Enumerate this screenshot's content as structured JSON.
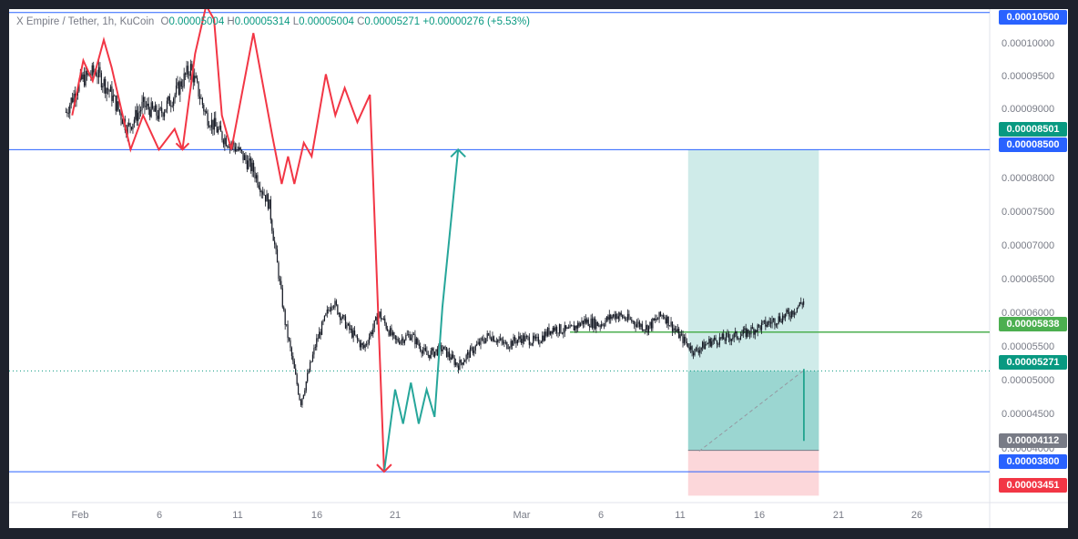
{
  "legend": {
    "symbol": "X Empire / Tether, 1h, KuCoin",
    "open_label": "O",
    "open": "0.00005004",
    "high_label": "H",
    "high": "0.00005314",
    "low_label": "L",
    "low": "0.00005004",
    "close_label": "C",
    "close": "0.00005271",
    "change": "+0.00000276 (+5.53%)"
  },
  "price_axis": {
    "ticks": [
      "0.00010000",
      "0.00009500",
      "0.00009000",
      "0.00008000",
      "0.00007500",
      "0.00007000",
      "0.00006500",
      "0.00006000",
      "0.00005500",
      "0.00005000",
      "0.00004500",
      "0.00004000"
    ],
    "badges": [
      {
        "label": "0.00010500",
        "color": "#2962ff"
      },
      {
        "label": "0.00008501",
        "color": "#089981"
      },
      {
        "label": "0.00008500",
        "color": "#2962ff"
      },
      {
        "label": "0.00005838",
        "color": "#4caf50"
      },
      {
        "label": "0.00005271",
        "color": "#089981"
      },
      {
        "label": "0.00004112",
        "color": "#787b86"
      },
      {
        "label": "0.00003800",
        "color": "#2962ff"
      },
      {
        "label": "0.00003451",
        "color": "#f23645"
      }
    ]
  },
  "time_axis": {
    "ticks": [
      "Feb",
      "6",
      "11",
      "16",
      "21",
      "Mar",
      "6",
      "11",
      "16",
      "21",
      "26"
    ]
  },
  "colors": {
    "up": "#089981",
    "down": "#f23645",
    "hline": "#2962ff",
    "resistance": "#4caf50",
    "profit_zone": "#26a69a",
    "loss_zone": "#f23645"
  },
  "chart_data": {
    "type": "candlestick",
    "title": "X Empire / Tether, 1h, KuCoin",
    "ylim": [
      3.35e-05,
      0.0001055
    ],
    "x_ticks": [
      "Feb",
      "6",
      "11",
      "16",
      "21",
      "Mar",
      "6",
      "11",
      "16",
      "21",
      "26"
    ],
    "horizontal_lines": [
      0.000105,
      8.5e-05,
      3.8e-05
    ],
    "resistance_line": 5.838e-05,
    "current_price": 5.271e-05,
    "long_position": {
      "entry": 4.112e-05,
      "target": 8.501e-05,
      "stop": 3.451e-05
    },
    "price_path": [
      [
        -1,
        9e-05
      ],
      [
        0,
        9.5e-05
      ],
      [
        1,
        9.65e-05
      ],
      [
        2,
        9.3e-05
      ],
      [
        3,
        8.8e-05
      ],
      [
        4,
        9.15e-05
      ],
      [
        5,
        9e-05
      ],
      [
        6,
        9.3e-05
      ],
      [
        7,
        9.7e-05
      ],
      [
        8,
        9e-05
      ],
      [
        9,
        8.7e-05
      ],
      [
        10,
        8.5e-05
      ],
      [
        11,
        8.2e-05
      ],
      [
        12,
        7.7e-05
      ],
      [
        13,
        6e-05
      ],
      [
        14,
        4.8e-05
      ],
      [
        15,
        5.7e-05
      ],
      [
        16,
        6.3e-05
      ],
      [
        17,
        5.9e-05
      ],
      [
        18,
        5.6e-05
      ],
      [
        19,
        6.1e-05
      ],
      [
        20,
        5.7e-05
      ],
      [
        21,
        5.8e-05
      ],
      [
        22,
        5.5e-05
      ],
      [
        23,
        5.6e-05
      ],
      [
        24,
        5.35e-05
      ],
      [
        25,
        5.6e-05
      ],
      [
        26,
        5.8e-05
      ],
      [
        27,
        5.65e-05
      ],
      [
        28,
        5.75e-05
      ],
      [
        29,
        5.7e-05
      ],
      [
        30,
        5.9e-05
      ],
      [
        31,
        5.85e-05
      ],
      [
        32,
        6e-05
      ],
      [
        33,
        5.95e-05
      ],
      [
        34,
        6.1e-05
      ],
      [
        35,
        6e-05
      ],
      [
        36,
        5.9e-05
      ],
      [
        37,
        6.1e-05
      ],
      [
        38,
        5.8e-05
      ],
      [
        39,
        5.55e-05
      ],
      [
        40,
        5.7e-05
      ],
      [
        41,
        5.75e-05
      ],
      [
        42,
        5.8e-05
      ],
      [
        43,
        5.9e-05
      ],
      [
        44,
        6e-05
      ],
      [
        45,
        6.1e-05
      ],
      [
        46,
        6.3e-05
      ],
      [
        47,
        6.1e-05
      ],
      [
        48,
        5.95e-05
      ],
      [
        49,
        5.8e-05
      ],
      [
        50,
        5.6e-05
      ],
      [
        51,
        5.3e-05
      ],
      [
        52,
        5.5e-05
      ],
      [
        53,
        5.45e-05
      ],
      [
        54,
        5.55e-05
      ],
      [
        55,
        5.4e-05
      ],
      [
        56,
        5.2e-05
      ],
      [
        57,
        5.5e-05
      ],
      [
        58,
        5.4e-05
      ],
      [
        59,
        5.55e-05
      ],
      [
        60,
        5.75e-05
      ],
      [
        61,
        5.9e-05
      ],
      [
        62,
        5.45e-05
      ],
      [
        63,
        5.2e-05
      ],
      [
        64,
        5.1e-05
      ],
      [
        65,
        5.15e-05
      ],
      [
        66,
        5.2e-05
      ],
      [
        67,
        5.1e-05
      ],
      [
        68,
        4.95e-05
      ],
      [
        69,
        4.8e-05
      ],
      [
        70,
        4.6e-05
      ],
      [
        71,
        4.25e-05
      ],
      [
        72,
        4.3e-05
      ],
      [
        73,
        4.15e-05
      ],
      [
        74,
        4.2e-05
      ],
      [
        75,
        4.15e-05
      ],
      [
        76,
        4.2e-05
      ],
      [
        77,
        4.1e-05
      ],
      [
        78,
        4.3e-05
      ],
      [
        79,
        4.4e-05
      ],
      [
        80,
        4.15e-05
      ],
      [
        81,
        4.2e-05
      ],
      [
        82,
        5.3e-05
      ]
    ],
    "drawings": {
      "red_zigzag": [
        [
          -0.5,
          9e-05
        ],
        [
          0.2,
          9.8e-05
        ],
        [
          0.8,
          9.5e-05
        ],
        [
          1.5,
          0.000101
        ],
        [
          2,
          9.7e-05
        ],
        [
          3.2,
          8.5e-05
        ],
        [
          4,
          9e-05
        ],
        [
          5,
          8.5e-05
        ],
        [
          6,
          8.8e-05
        ],
        [
          6.5,
          8.5e-05
        ],
        [
          7.3,
          9.9e-05
        ],
        [
          8,
          0.000106
        ],
        [
          8.5,
          0.000104
        ],
        [
          9,
          9e-05
        ],
        [
          9.6,
          8.5e-05
        ],
        [
          11,
          0.000102
        ],
        [
          12.2,
          8.7e-05
        ],
        [
          12.8,
          8e-05
        ],
        [
          13.2,
          8.4e-05
        ],
        [
          13.6,
          8e-05
        ],
        [
          14.2,
          8.6e-05
        ],
        [
          14.7,
          8.4e-05
        ],
        [
          15.6,
          9.6e-05
        ],
        [
          16.2,
          9e-05
        ],
        [
          16.8,
          9.4e-05
        ],
        [
          17.6,
          8.9e-05
        ],
        [
          18.4,
          9.3e-05
        ],
        [
          19.3,
          3.8e-05
        ]
      ],
      "green_zigzag": [
        [
          19.3,
          3.8e-05
        ],
        [
          20,
          5e-05
        ],
        [
          20.5,
          4.5e-05
        ],
        [
          21,
          5.1e-05
        ],
        [
          21.5,
          4.5e-05
        ],
        [
          22,
          5e-05
        ],
        [
          22.5,
          4.6e-05
        ],
        [
          23,
          6.2e-05
        ],
        [
          24,
          8.5e-05
        ]
      ]
    }
  }
}
